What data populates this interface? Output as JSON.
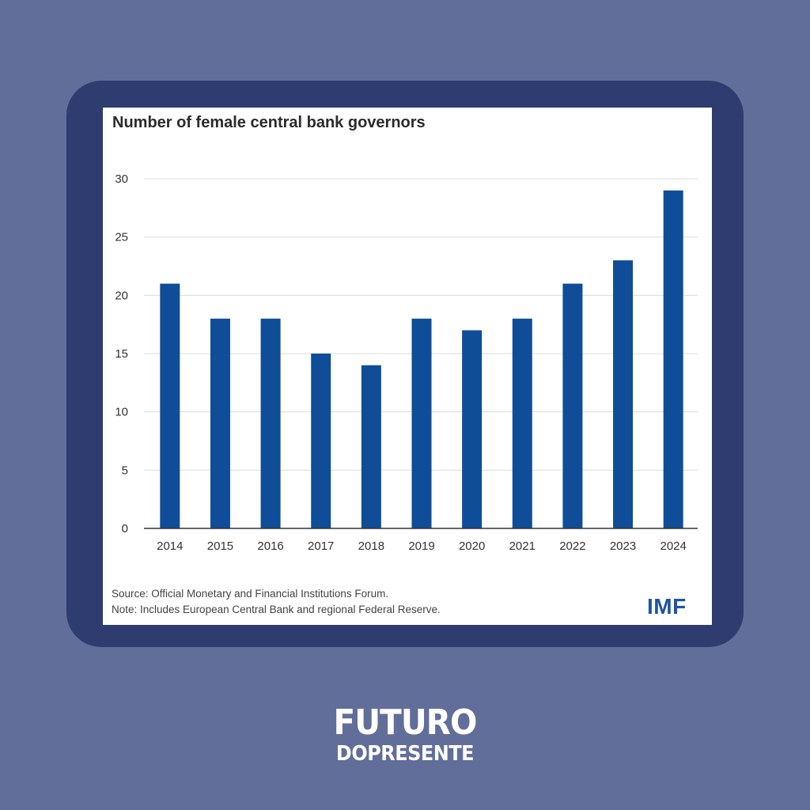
{
  "chart_data": {
    "type": "bar",
    "title": "Number of female central bank governors",
    "categories": [
      "2014",
      "2015",
      "2016",
      "2017",
      "2018",
      "2019",
      "2020",
      "2021",
      "2022",
      "2023",
      "2024"
    ],
    "values": [
      21,
      18,
      18,
      15,
      14,
      18,
      17,
      18,
      21,
      23,
      29
    ],
    "ylim": [
      0,
      30
    ],
    "yticks": [
      0,
      5,
      10,
      15,
      20,
      25,
      30
    ],
    "xlabel": "",
    "ylabel": "",
    "grid": true,
    "bar_color": "#0f4d98"
  },
  "notes": {
    "source": "Source: Official Monetary and Financial Institutions Forum.",
    "note": "Note: Includes European Central Bank and regional Federal Reserve."
  },
  "logo": "IMF",
  "brand": {
    "line1": "FUTURO",
    "line2": "DOPRESENTE"
  },
  "colors": {
    "background": "#616e9a",
    "frame": "#2e3c70",
    "logo": "#1d55a4"
  }
}
